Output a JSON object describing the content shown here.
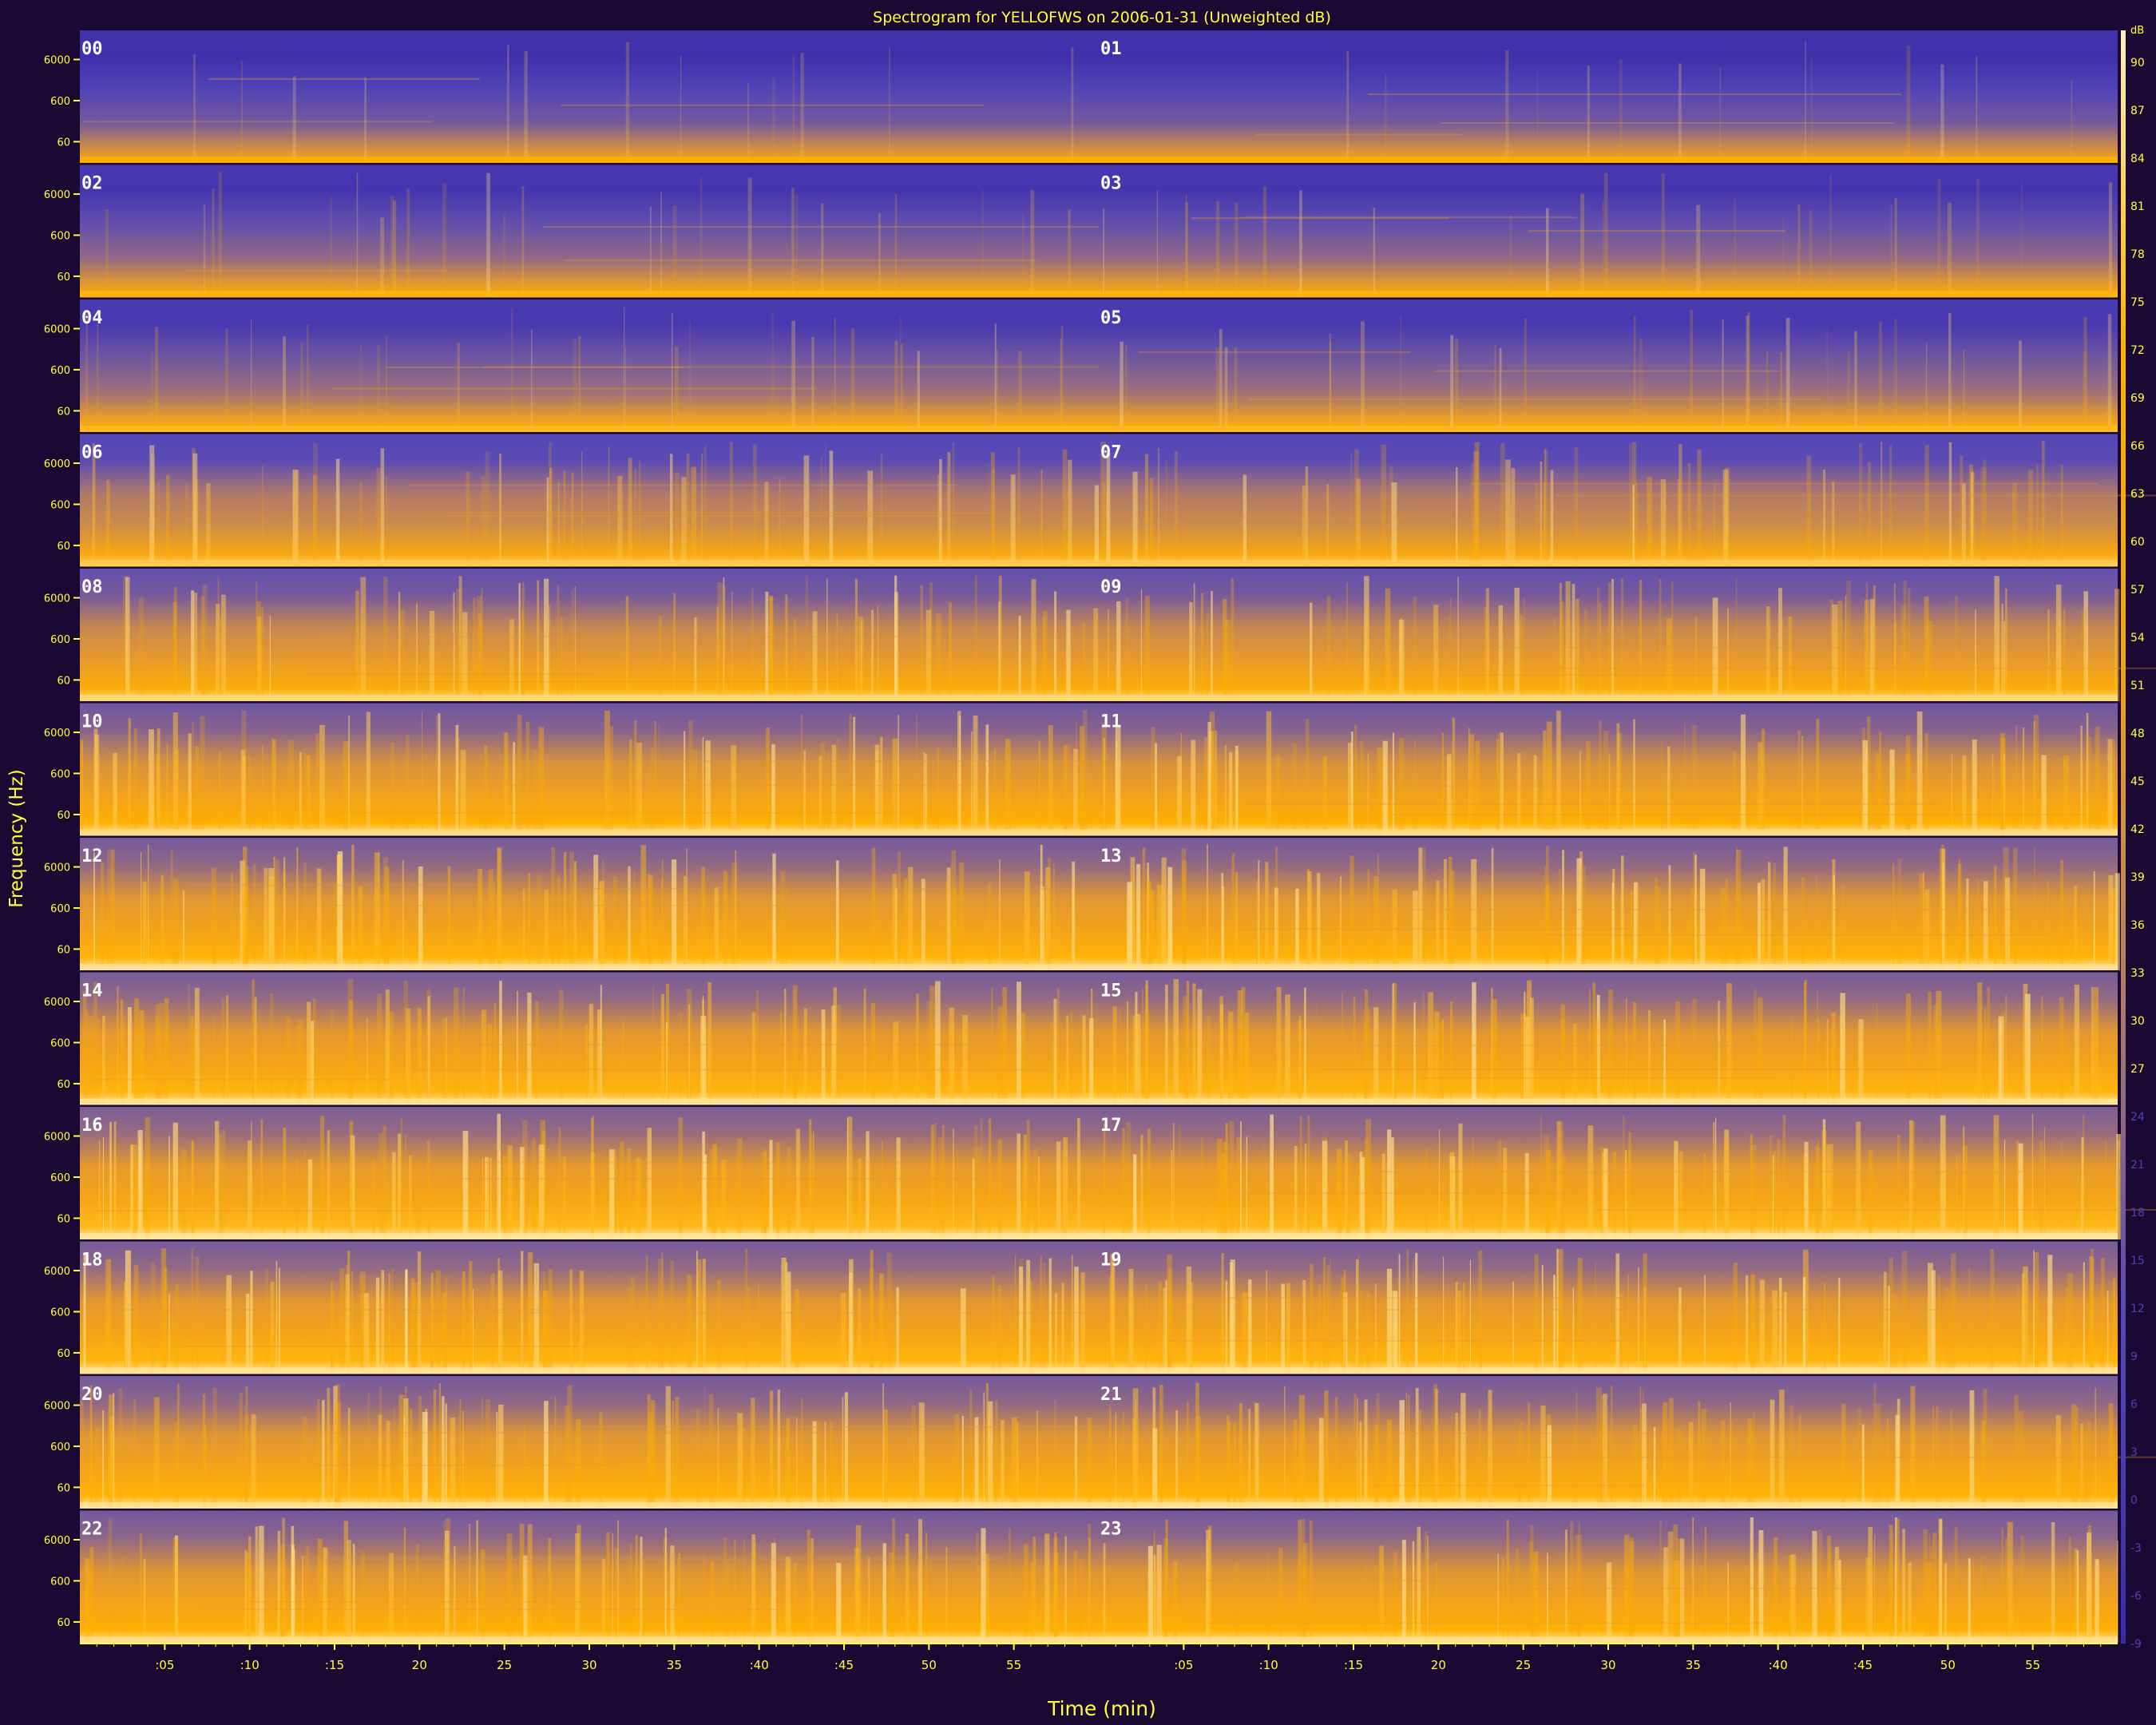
{
  "chart_data": {
    "type": "heatmap",
    "title": "Spectrogram for YELLOFWS on 2006-01-31 (Unweighted dB)",
    "xlabel": "Time (min)",
    "ylabel": "Frequency (Hz)",
    "y_tick_labels": [
      "6000",
      "600",
      "60"
    ],
    "x_tick_labels": [
      ":05",
      ":10",
      ":15",
      "20",
      "25",
      "30",
      "35",
      ":40",
      ":45",
      "50",
      "55"
    ],
    "panel_labels": [
      "00",
      "01",
      "02",
      "03",
      "04",
      "05",
      "06",
      "07",
      "08",
      "09",
      "10",
      "11",
      "12",
      "13",
      "14",
      "15",
      "16",
      "17",
      "18",
      "19",
      "20",
      "21",
      "22",
      "23"
    ],
    "colorbar_unit": "dB",
    "colorbar_ticks": [
      90,
      87,
      84,
      81,
      78,
      75,
      72,
      69,
      66,
      63,
      60,
      57,
      54,
      51,
      48,
      45,
      42,
      39,
      36,
      33,
      30,
      27,
      24,
      21,
      18,
      15,
      12,
      9,
      6,
      3,
      0,
      -3,
      -6,
      -9
    ],
    "colorbar_range": [
      -9,
      92
    ],
    "colormap": [
      "#3a2aa8",
      "#5548b8",
      "#b07a6a",
      "#f0a020",
      "#ffb000",
      "#fff0c0"
    ],
    "row_intensity": [
      0.05,
      0.18,
      0.25,
      0.55,
      0.72,
      0.82,
      0.88,
      0.9,
      0.93,
      0.9,
      0.88,
      0.86
    ]
  },
  "colors": {
    "background": "#1a0a33",
    "tick_text": "#ffff40",
    "title_text": "#ffff40"
  }
}
